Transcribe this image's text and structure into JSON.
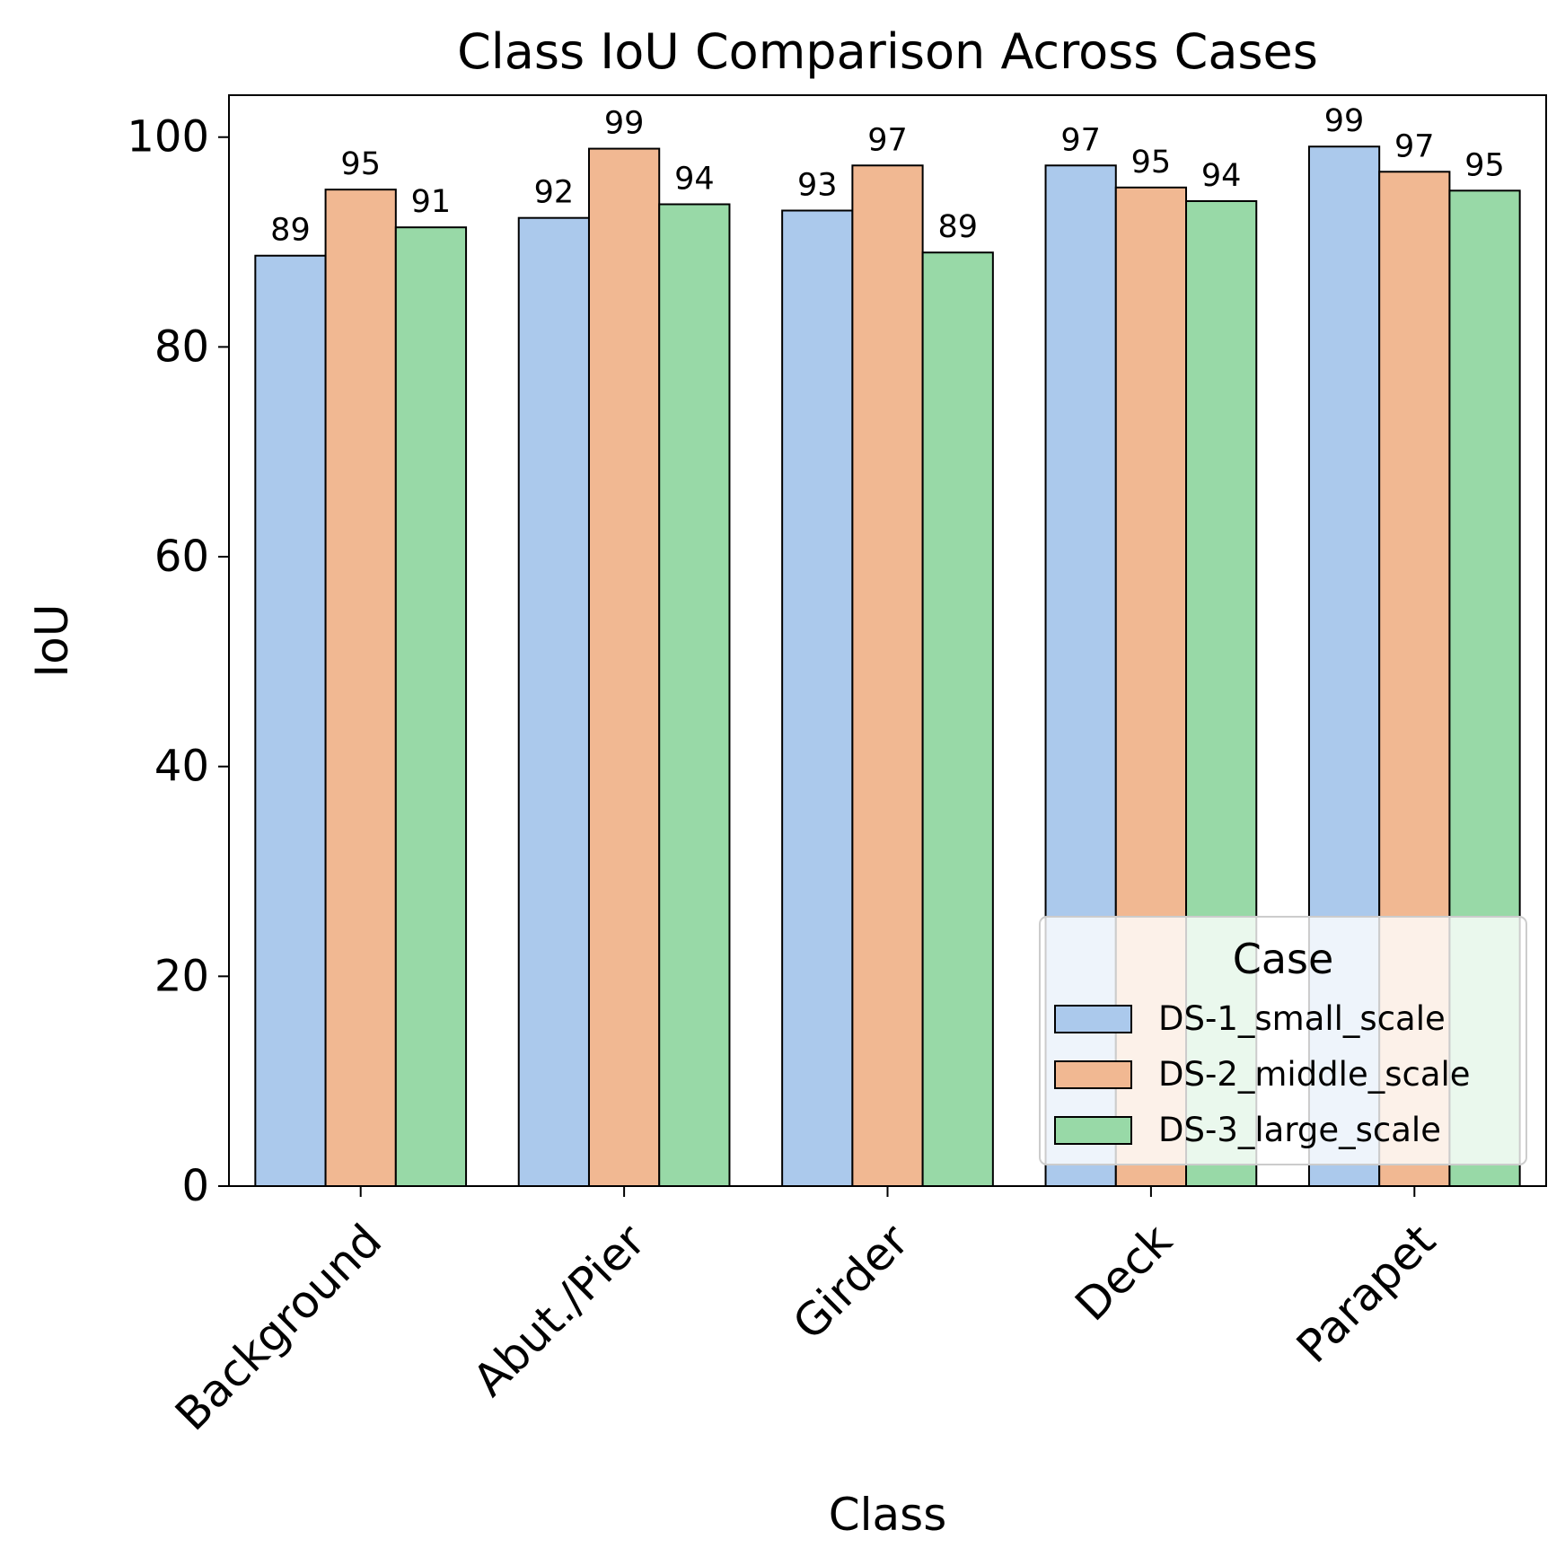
{
  "chart_data": {
    "type": "bar",
    "title": "Class IoU Comparison Across Cases",
    "xlabel": "Class",
    "ylabel": "IoU",
    "ylim": [
      0,
      104
    ],
    "yticks": [
      0,
      20,
      40,
      60,
      80,
      100
    ],
    "categories": [
      "Background",
      "Abut./Pier",
      "Girder",
      "Deck",
      "Parapet"
    ],
    "series": [
      {
        "name": "DS-1_small_scale",
        "color": "#abc9ec",
        "values": [
          88.7,
          92.3,
          93.0,
          97.3,
          99.1
        ],
        "labels": [
          "89",
          "92",
          "93",
          "97",
          "99"
        ]
      },
      {
        "name": "DS-2_middle_scale",
        "color": "#f1b892",
        "values": [
          95.0,
          98.9,
          97.3,
          95.2,
          96.7
        ],
        "labels": [
          "95",
          "99",
          "97",
          "95",
          "97"
        ]
      },
      {
        "name": "DS-3_large_scale",
        "color": "#98d9a7",
        "values": [
          91.4,
          93.6,
          89.0,
          93.9,
          94.9
        ],
        "labels": [
          "91",
          "94",
          "89",
          "94",
          "95"
        ]
      }
    ],
    "legend": {
      "title": "Case",
      "position": "lower-right"
    },
    "grid": false
  }
}
